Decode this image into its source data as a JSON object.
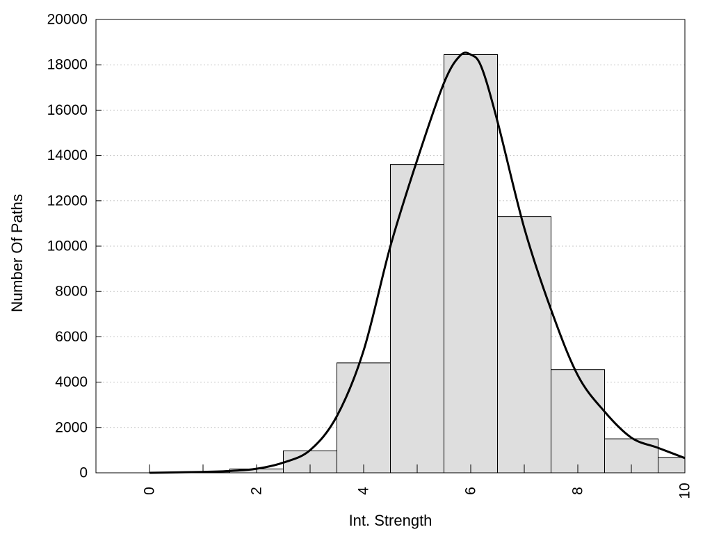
{
  "chart_data": {
    "type": "bar",
    "title": "",
    "xlabel": "Int. Strength",
    "ylabel": "Number Of Paths",
    "xlim": [
      -1,
      10
    ],
    "ylim": [
      0,
      20000
    ],
    "x_ticks": [
      0,
      2,
      4,
      6,
      8,
      10
    ],
    "y_ticks": [
      0,
      2000,
      4000,
      6000,
      8000,
      10000,
      12000,
      14000,
      16000,
      18000,
      20000
    ],
    "grid": "horizontal dotted",
    "bin_width": 1,
    "bins": [
      {
        "center": 0,
        "value": 0
      },
      {
        "center": 1,
        "value": 10
      },
      {
        "center": 2,
        "value": 170
      },
      {
        "center": 3,
        "value": 970
      },
      {
        "center": 4,
        "value": 4850
      },
      {
        "center": 5,
        "value": 13600
      },
      {
        "center": 6,
        "value": 18450
      },
      {
        "center": 7,
        "value": 11300
      },
      {
        "center": 8,
        "value": 4550
      },
      {
        "center": 9,
        "value": 1500
      },
      {
        "center": 10,
        "value": 680
      }
    ],
    "curve": {
      "x": [
        0,
        0.5,
        1,
        1.5,
        2,
        2.5,
        3,
        3.5,
        4,
        4.5,
        5,
        5.5,
        5.8,
        6,
        6.2,
        6.5,
        7,
        7.5,
        8,
        8.5,
        9,
        9.5,
        10
      ],
      "y": [
        0,
        20,
        40,
        80,
        180,
        450,
        1000,
        2500,
        5400,
        10000,
        13800,
        17200,
        18400,
        18450,
        17900,
        15500,
        10800,
        7200,
        4300,
        2700,
        1550,
        1100,
        650
      ]
    },
    "colors": {
      "bar_fill": "#dedede",
      "bar_stroke": "#000000",
      "curve": "#000000",
      "grid": "#c8c8c8"
    }
  }
}
